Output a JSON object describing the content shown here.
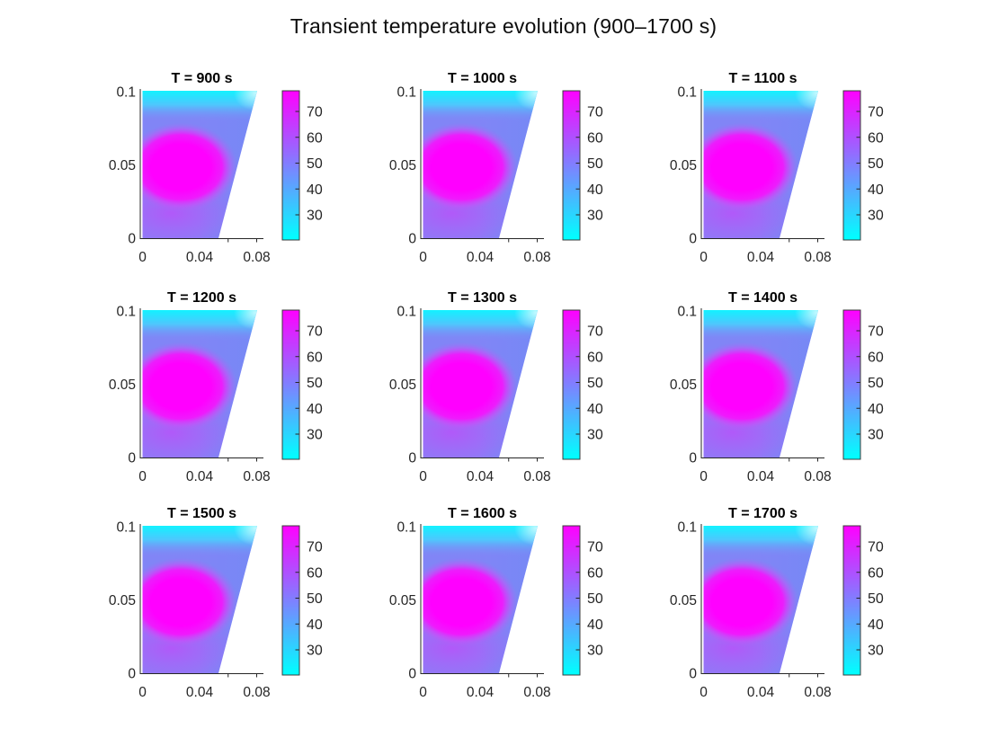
{
  "figure": {
    "title": "Transient temperature evolution (900–1700 s)",
    "background_color": "#ffffff"
  },
  "subplots": [
    {
      "title": "T = 900 s",
      "time_s": 900
    },
    {
      "title": "T = 1000 s",
      "time_s": 1000
    },
    {
      "title": "T = 1100 s",
      "time_s": 1100
    },
    {
      "title": "T = 1200 s",
      "time_s": 1200
    },
    {
      "title": "T = 1300 s",
      "time_s": 1300
    },
    {
      "title": "T = 1400 s",
      "time_s": 1400
    },
    {
      "title": "T = 1500 s",
      "time_s": 1500
    },
    {
      "title": "T = 1600 s",
      "time_s": 1600
    },
    {
      "title": "T = 1700 s",
      "time_s": 1700
    }
  ],
  "axes": {
    "x_tick_labels": [
      "0",
      "0.04",
      "0.08"
    ],
    "y_tick_labels": [
      "0",
      "0.05",
      "0.1"
    ]
  },
  "colorbar": {
    "tick_labels": [
      "70",
      "60",
      "50",
      "40",
      "30"
    ],
    "colormap": "cool",
    "top_color": "#ff00ff",
    "bottom_color": "#00ffff"
  },
  "chart_data": {
    "type": "heatmap",
    "title": "Transient temperature evolution (900–1700 s)",
    "layout": "3x3 grid of subplots, each with its own colorbar",
    "subplot_titles": [
      "T = 900 s",
      "T = 1000 s",
      "T = 1100 s",
      "T = 1200 s",
      "T = 1300 s",
      "T = 1400 s",
      "T = 1500 s",
      "T = 1600 s",
      "T = 1700 s"
    ],
    "subplot_times_s": [
      900,
      1000,
      1100,
      1200,
      1300,
      1400,
      1500,
      1600,
      1700
    ],
    "x_ticks": [
      0,
      0.04,
      0.08
    ],
    "y_ticks": [
      0,
      0.05,
      0.1
    ],
    "xlim": [
      0,
      0.086
    ],
    "ylim": [
      0,
      0.105
    ],
    "grid": false,
    "colorbar": {
      "ticks": [
        30,
        40,
        50,
        60,
        70
      ],
      "colormap": "cool",
      "clim_estimate": [
        20,
        78
      ]
    },
    "domain_polygon_xy": [
      [
        0,
        0
      ],
      [
        0.0533,
        0
      ],
      [
        0.08,
        0.1
      ],
      [
        0,
        0.1
      ]
    ],
    "field_samples": [
      {
        "x": 0.02,
        "y": 0.05,
        "T": 78
      },
      {
        "x": 0.04,
        "y": 0.05,
        "T": 75
      },
      {
        "x": 0.02,
        "y": 0.068,
        "T": 74
      },
      {
        "x": 0.01,
        "y": 0.08,
        "T": 50
      },
      {
        "x": 0.01,
        "y": 0.09,
        "T": 38
      },
      {
        "x": 0.02,
        "y": 0.1,
        "T": 25
      },
      {
        "x": 0.06,
        "y": 0.1,
        "T": 26
      },
      {
        "x": 0.065,
        "y": 0.05,
        "T": 47
      },
      {
        "x": 0.01,
        "y": 0.0,
        "T": 55
      },
      {
        "x": 0.04,
        "y": 0.0,
        "T": 52
      }
    ],
    "note": "All nine frames show a visually near-identical quasi-steady field: hot magenta core (~75-78) centered near (0.02, 0.045), cool cyan band (~25) along the top edge, and cooler blue-purple (~45-55) along the bottom and the slanted right boundary."
  }
}
